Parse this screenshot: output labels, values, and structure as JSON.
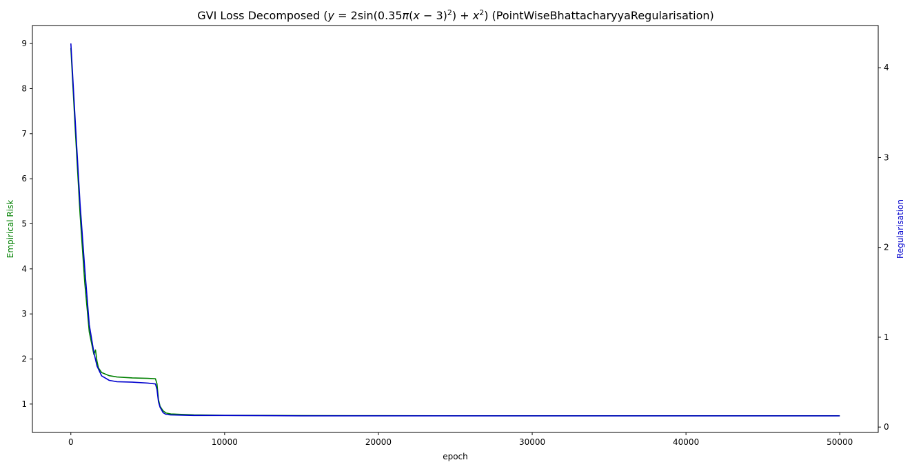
{
  "chart_data": {
    "type": "line",
    "title": "GVI Loss Decomposed ($y=2\\sin(0.35\\pi(x-3)^2)+x^2$) (PointWiseBhattacharyyaRegularisation)",
    "title_parts": {
      "prefix": "GVI Loss Decomposed (",
      "y": "y",
      "eq": " = 2sin(0.35",
      "pi": "π",
      "open": "(",
      "x1": "x",
      "minus": " − 3)",
      "sq1": "2",
      "close": ") + ",
      "x2": "x",
      "sq2": "2",
      "suffix": ") (PointWiseBhattacharyyaRegularisation)"
    },
    "xlabel": "epoch",
    "ylabel_left": "Empirical Risk",
    "ylabel_right": "Regularisation",
    "xlim": [
      -2500,
      52500
    ],
    "ylim_left": [
      0.37,
      9.4
    ],
    "ylim_right": [
      -0.06,
      4.47
    ],
    "x_ticks": [
      0,
      10000,
      20000,
      30000,
      40000,
      50000
    ],
    "y_left_ticks": [
      1,
      2,
      3,
      4,
      5,
      6,
      7,
      8,
      9
    ],
    "y_right_ticks": [
      0,
      1,
      2,
      3,
      4
    ],
    "grid": false,
    "colors": {
      "empirical_risk": "#008000",
      "regularisation": "#0000cd",
      "left_label": "#008000",
      "right_label": "#0000cd"
    },
    "series": [
      {
        "axis": "left",
        "x": [
          0,
          300,
          600,
          900,
          1200,
          1500,
          1600,
          1700,
          1800,
          2000,
          2500,
          3000,
          4000,
          5000,
          5500,
          5600,
          5700,
          5800,
          5900,
          6000,
          6200,
          6500,
          8000,
          10000,
          15000,
          20000,
          30000,
          40000,
          50000
        ],
        "values": [
          8.9,
          7.0,
          5.2,
          3.7,
          2.6,
          2.1,
          2.2,
          1.95,
          1.8,
          1.7,
          1.63,
          1.6,
          1.58,
          1.57,
          1.56,
          1.45,
          1.1,
          0.95,
          0.9,
          0.85,
          0.8,
          0.78,
          0.76,
          0.75,
          0.745,
          0.742,
          0.74,
          0.74,
          0.74
        ]
      },
      {
        "axis": "right",
        "x": [
          0,
          300,
          600,
          900,
          1200,
          1500,
          1700,
          2000,
          2500,
          3000,
          4000,
          5000,
          5500,
          5600,
          5700,
          5800,
          5900,
          6000,
          6200,
          6500,
          8000,
          10000,
          15000,
          20000,
          30000,
          40000,
          50000
        ],
        "values": [
          4.27,
          3.36,
          2.48,
          1.77,
          1.14,
          0.83,
          0.68,
          0.57,
          0.52,
          0.505,
          0.5,
          0.49,
          0.48,
          0.42,
          0.28,
          0.22,
          0.19,
          0.16,
          0.14,
          0.135,
          0.13,
          0.13,
          0.125,
          0.125,
          0.125,
          0.125,
          0.125
        ]
      }
    ]
  }
}
